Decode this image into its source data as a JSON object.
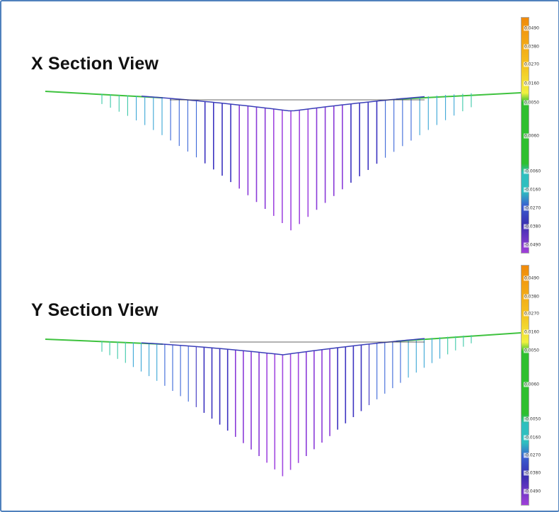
{
  "panels": [
    {
      "title": "X Section View",
      "ticks": [
        "0.0490",
        "0.0380",
        "0.0270",
        "0.0160",
        "0.0050",
        "0.0060",
        "-0.0060",
        "-0.0160",
        "-0.0270",
        "-0.0380",
        "-0.0490"
      ]
    },
    {
      "title": "Y Section View",
      "ticks": [
        "0.0490",
        "0.0380",
        "0.0270",
        "0.0160",
        "0.0050",
        "0.0060",
        "-0.0050",
        "-0.0160",
        "-0.0270",
        "-0.0380",
        "-0.0490"
      ]
    }
  ],
  "colors": {
    "frame": "#4f81bd",
    "scale": [
      "#f08a0a",
      "#f4c020",
      "#f0f040",
      "#2fbf2f",
      "#2fbfbf",
      "#3a5fd0",
      "#3a2fb0",
      "#a040d8"
    ]
  }
}
